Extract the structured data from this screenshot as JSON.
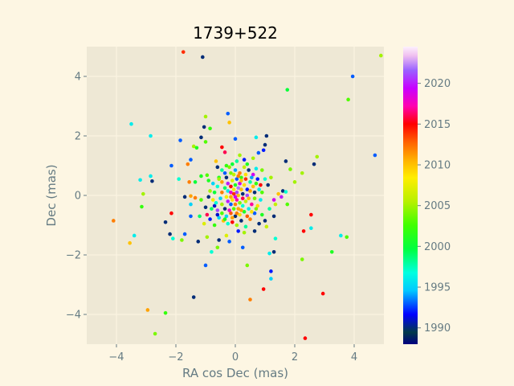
{
  "chart_data": {
    "type": "scatter",
    "title": "1739+522",
    "xlabel": "RA cos Dec (mas)",
    "ylabel": "Dec (mas)",
    "xlim": [
      -5,
      5
    ],
    "ylim": [
      -5,
      5
    ],
    "xticks": [
      -4,
      -2,
      0,
      2,
      4
    ],
    "yticks": [
      -4,
      -2,
      0,
      2,
      4
    ],
    "grid": true,
    "colorbar": {
      "label": "",
      "range": [
        1988,
        2024.5
      ],
      "ticks": [
        1990,
        1995,
        2000,
        2005,
        2010,
        2015,
        2020
      ],
      "colormap": "gist_ncar"
    },
    "colors": {
      "figure_background": "#fdf6e3",
      "axes_background": "#eee8d5",
      "grid": "#fdf6e3",
      "text": "#657b83"
    },
    "points": [
      {
        "x": -1.75,
        "y": 4.82,
        "c": 2014
      },
      {
        "x": -1.1,
        "y": 4.65,
        "c": 1990
      },
      {
        "x": 4.9,
        "y": 4.7,
        "c": 2005
      },
      {
        "x": 3.95,
        "y": 4.0,
        "c": 1993
      },
      {
        "x": 3.8,
        "y": 3.22,
        "c": 2003
      },
      {
        "x": 1.75,
        "y": 3.55,
        "c": 2000
      },
      {
        "x": -3.5,
        "y": 2.4,
        "c": 1996
      },
      {
        "x": -2.85,
        "y": 2.0,
        "c": 1996
      },
      {
        "x": -1.0,
        "y": 2.65,
        "c": 2005
      },
      {
        "x": -0.25,
        "y": 2.75,
        "c": 1993
      },
      {
        "x": -0.2,
        "y": 2.45,
        "c": 2010
      },
      {
        "x": -1.05,
        "y": 2.3,
        "c": 1990
      },
      {
        "x": -0.85,
        "y": 2.25,
        "c": 2002
      },
      {
        "x": -1.85,
        "y": 1.85,
        "c": 1993
      },
      {
        "x": -1.15,
        "y": 1.95,
        "c": 1990
      },
      {
        "x": -1.0,
        "y": 1.8,
        "c": 2003
      },
      {
        "x": -1.4,
        "y": 1.65,
        "c": 2005
      },
      {
        "x": -1.3,
        "y": 1.6,
        "c": 2001
      },
      {
        "x": -0.45,
        "y": 1.62,
        "c": 2015
      },
      {
        "x": -0.35,
        "y": 1.45,
        "c": 2016
      },
      {
        "x": 0.0,
        "y": 1.9,
        "c": 1993
      },
      {
        "x": 0.7,
        "y": 1.95,
        "c": 1996
      },
      {
        "x": 1.05,
        "y": 2.0,
        "c": 1990
      },
      {
        "x": 1.0,
        "y": 1.7,
        "c": 1990
      },
      {
        "x": 0.95,
        "y": 1.52,
        "c": 1992
      },
      {
        "x": 0.78,
        "y": 1.43,
        "c": 1993
      },
      {
        "x": 4.7,
        "y": 1.35,
        "c": 1993
      },
      {
        "x": 2.75,
        "y": 1.3,
        "c": 2005
      },
      {
        "x": 2.65,
        "y": 1.05,
        "c": 1990
      },
      {
        "x": 1.7,
        "y": 1.15,
        "c": 1990
      },
      {
        "x": 1.85,
        "y": 0.88,
        "c": 2004
      },
      {
        "x": 2.25,
        "y": 0.75,
        "c": 2005
      },
      {
        "x": 2.0,
        "y": 0.45,
        "c": 2005
      },
      {
        "x": -2.15,
        "y": 1.0,
        "c": 1993
      },
      {
        "x": -1.5,
        "y": 1.2,
        "c": 1993
      },
      {
        "x": -1.6,
        "y": 1.05,
        "c": 2012
      },
      {
        "x": -0.65,
        "y": 1.15,
        "c": 2010
      },
      {
        "x": -3.2,
        "y": 0.52,
        "c": 1996
      },
      {
        "x": -2.85,
        "y": 0.65,
        "c": 1996
      },
      {
        "x": -2.8,
        "y": 0.48,
        "c": 1990
      },
      {
        "x": -1.9,
        "y": 0.55,
        "c": 1997
      },
      {
        "x": -1.55,
        "y": 0.45,
        "c": 2012
      },
      {
        "x": -1.35,
        "y": 0.45,
        "c": 2000
      },
      {
        "x": -1.15,
        "y": 0.65,
        "c": 2001
      },
      {
        "x": -0.95,
        "y": 0.68,
        "c": 2003
      },
      {
        "x": -3.1,
        "y": 0.05,
        "c": 2005
      },
      {
        "x": -3.15,
        "y": -0.38,
        "c": 2002
      },
      {
        "x": -1.7,
        "y": -0.05,
        "c": 1990
      },
      {
        "x": -1.5,
        "y": -0.02,
        "c": 2011
      },
      {
        "x": -1.5,
        "y": -0.3,
        "c": 1995
      },
      {
        "x": -1.5,
        "y": -0.7,
        "c": 1993
      },
      {
        "x": -1.35,
        "y": -0.08,
        "c": 2012
      },
      {
        "x": -1.15,
        "y": -0.15,
        "c": 2003
      },
      {
        "x": -1.0,
        "y": -0.4,
        "c": 1990
      },
      {
        "x": -2.15,
        "y": -0.6,
        "c": 2015
      },
      {
        "x": -2.35,
        "y": -0.9,
        "c": 1990
      },
      {
        "x": -4.1,
        "y": -0.85,
        "c": 2012
      },
      {
        "x": -2.2,
        "y": -1.3,
        "c": 1990
      },
      {
        "x": -2.1,
        "y": -1.45,
        "c": 1997
      },
      {
        "x": -1.8,
        "y": -1.5,
        "c": 2004
      },
      {
        "x": -1.7,
        "y": -1.3,
        "c": 1993
      },
      {
        "x": -1.25,
        "y": -1.55,
        "c": 1990
      },
      {
        "x": -0.95,
        "y": -1.4,
        "c": 2005
      },
      {
        "x": -0.8,
        "y": -1.9,
        "c": 1997
      },
      {
        "x": -0.6,
        "y": -1.75,
        "c": 2004
      },
      {
        "x": -0.55,
        "y": -1.5,
        "c": 1990
      },
      {
        "x": -0.3,
        "y": -1.35,
        "c": 2007
      },
      {
        "x": -0.2,
        "y": -1.55,
        "c": 1993
      },
      {
        "x": 0.25,
        "y": -1.75,
        "c": 1993
      },
      {
        "x": 0.1,
        "y": -1.2,
        "c": 1992
      },
      {
        "x": 0.3,
        "y": -1.25,
        "c": 2005
      },
      {
        "x": -3.55,
        "y": -1.6,
        "c": 2010
      },
      {
        "x": -3.4,
        "y": -1.35,
        "c": 1996
      },
      {
        "x": -1.0,
        "y": -2.35,
        "c": 1993
      },
      {
        "x": 0.4,
        "y": -2.35,
        "c": 2004
      },
      {
        "x": -1.4,
        "y": -3.42,
        "c": 1990
      },
      {
        "x": -2.95,
        "y": -3.85,
        "c": 2011
      },
      {
        "x": -2.35,
        "y": -3.95,
        "c": 2002
      },
      {
        "x": -2.7,
        "y": -4.65,
        "c": 2004
      },
      {
        "x": 0.5,
        "y": -3.5,
        "c": 2012
      },
      {
        "x": 0.95,
        "y": -3.15,
        "c": 2015
      },
      {
        "x": 2.35,
        "y": -4.8,
        "c": 2015
      },
      {
        "x": 2.95,
        "y": -3.3,
        "c": 2015
      },
      {
        "x": 1.2,
        "y": -2.55,
        "c": 1992
      },
      {
        "x": 1.2,
        "y": -2.8,
        "c": 1995
      },
      {
        "x": 1.15,
        "y": -1.95,
        "c": 1996
      },
      {
        "x": 1.3,
        "y": -1.9,
        "c": 1990
      },
      {
        "x": 2.25,
        "y": -2.15,
        "c": 2004
      },
      {
        "x": 1.35,
        "y": -1.45,
        "c": 1997
      },
      {
        "x": 2.3,
        "y": -1.2,
        "c": 2015
      },
      {
        "x": 2.55,
        "y": -1.1,
        "c": 1996
      },
      {
        "x": 3.25,
        "y": -1.9,
        "c": 2001
      },
      {
        "x": 3.55,
        "y": -1.35,
        "c": 1996
      },
      {
        "x": 3.75,
        "y": -1.4,
        "c": 2003
      },
      {
        "x": 2.55,
        "y": -0.65,
        "c": 2015
      },
      {
        "x": 1.75,
        "y": -0.3,
        "c": 2003
      },
      {
        "x": 1.45,
        "y": 0.05,
        "c": 2010
      },
      {
        "x": 1.6,
        "y": 0.15,
        "c": 1990
      },
      {
        "x": 1.7,
        "y": 0.12,
        "c": 1997
      },
      {
        "x": 1.55,
        "y": -0.05,
        "c": 2020
      },
      {
        "x": 1.3,
        "y": -0.15,
        "c": 2019
      },
      {
        "x": 1.35,
        "y": -0.3,
        "c": 2006
      },
      {
        "x": 1.3,
        "y": -0.7,
        "c": 1990
      },
      {
        "x": 1.0,
        "y": -0.85,
        "c": 1990
      },
      {
        "x": 0.9,
        "y": -0.65,
        "c": 2001
      },
      {
        "x": 0.8,
        "y": -0.95,
        "c": 1990
      },
      {
        "x": 0.65,
        "y": -1.2,
        "c": 1990
      },
      {
        "x": 1.1,
        "y": 0.35,
        "c": 1990
      },
      {
        "x": 1.0,
        "y": 0.55,
        "c": 1997
      },
      {
        "x": 0.9,
        "y": 0.85,
        "c": 2004
      },
      {
        "x": 0.7,
        "y": 0.9,
        "c": 1996
      },
      {
        "x": 0.6,
        "y": 1.25,
        "c": 2005
      },
      {
        "x": 0.3,
        "y": 1.2,
        "c": 1992
      },
      {
        "x": 0.15,
        "y": 1.35,
        "c": 2005
      },
      {
        "x": 0.05,
        "y": 1.15,
        "c": 1998
      },
      {
        "x": -0.1,
        "y": 1.05,
        "c": 2000
      },
      {
        "x": -0.3,
        "y": 1.0,
        "c": 2002
      },
      {
        "x": -0.45,
        "y": 0.85,
        "c": 1998
      },
      {
        "x": -0.55,
        "y": 0.6,
        "c": 2001
      },
      {
        "x": -0.75,
        "y": 0.4,
        "c": 1995
      },
      {
        "x": -0.85,
        "y": 0.15,
        "c": 2005
      },
      {
        "x": -0.9,
        "y": -0.05,
        "c": 1990
      },
      {
        "x": -0.95,
        "y": -0.65,
        "c": 2016
      },
      {
        "x": -0.85,
        "y": -0.8,
        "c": 1992
      },
      {
        "x": -0.7,
        "y": -1.0,
        "c": 2002
      },
      {
        "x": -0.55,
        "y": -0.75,
        "c": 1995
      },
      {
        "x": -0.4,
        "y": -0.85,
        "c": 2010
      },
      {
        "x": -0.25,
        "y": -0.95,
        "c": 1997
      },
      {
        "x": -0.1,
        "y": -0.9,
        "c": 2015
      },
      {
        "x": 0.05,
        "y": -1.0,
        "c": 2005
      },
      {
        "x": 0.2,
        "y": -0.85,
        "c": 1990
      },
      {
        "x": 0.35,
        "y": -1.05,
        "c": 1998
      },
      {
        "x": 0.5,
        "y": -0.8,
        "c": 2012
      },
      {
        "x": 0.65,
        "y": -0.6,
        "c": 1993
      },
      {
        "x": 0.75,
        "y": -0.35,
        "c": 2009
      },
      {
        "x": 0.85,
        "y": -0.15,
        "c": 1996
      },
      {
        "x": 0.9,
        "y": 0.1,
        "c": 2003
      },
      {
        "x": 0.85,
        "y": 0.35,
        "c": 2015
      },
      {
        "x": 0.75,
        "y": 0.55,
        "c": 1992
      },
      {
        "x": 0.6,
        "y": 0.7,
        "c": 2019
      },
      {
        "x": 0.45,
        "y": 0.85,
        "c": 1990
      },
      {
        "x": 0.3,
        "y": 0.95,
        "c": 2006
      },
      {
        "x": 0.15,
        "y": 0.75,
        "c": 2012
      },
      {
        "x": 0.0,
        "y": 0.85,
        "c": 1994
      },
      {
        "x": -0.15,
        "y": 0.75,
        "c": 2004
      },
      {
        "x": -0.3,
        "y": 0.6,
        "c": 1990
      },
      {
        "x": -0.45,
        "y": 0.45,
        "c": 2011
      },
      {
        "x": -0.6,
        "y": 0.3,
        "c": 1997
      },
      {
        "x": -0.7,
        "y": 0.1,
        "c": 2000
      },
      {
        "x": -0.75,
        "y": -0.15,
        "c": 2008
      },
      {
        "x": -0.7,
        "y": -0.35,
        "c": 1991
      },
      {
        "x": -0.6,
        "y": -0.5,
        "c": 2021
      },
      {
        "x": -0.45,
        "y": -0.6,
        "c": 2003
      },
      {
        "x": -0.3,
        "y": -0.7,
        "c": 1995
      },
      {
        "x": -0.15,
        "y": -0.6,
        "c": 2013
      },
      {
        "x": 0.0,
        "y": -0.7,
        "c": 1990
      },
      {
        "x": 0.15,
        "y": -0.65,
        "c": 2009
      },
      {
        "x": 0.3,
        "y": -0.55,
        "c": 2001
      },
      {
        "x": 0.45,
        "y": -0.45,
        "c": 1996
      },
      {
        "x": 0.55,
        "y": -0.3,
        "c": 2017
      },
      {
        "x": 0.65,
        "y": -0.1,
        "c": 2004
      },
      {
        "x": 0.65,
        "y": 0.1,
        "c": 1990
      },
      {
        "x": 0.6,
        "y": 0.3,
        "c": 2010
      },
      {
        "x": 0.5,
        "y": 0.45,
        "c": 1998
      },
      {
        "x": 0.35,
        "y": 0.55,
        "c": 2014
      },
      {
        "x": 0.2,
        "y": 0.6,
        "c": 2002
      },
      {
        "x": 0.05,
        "y": 0.55,
        "c": 1993
      },
      {
        "x": -0.1,
        "y": 0.5,
        "c": 2007
      },
      {
        "x": -0.25,
        "y": 0.4,
        "c": 2020
      },
      {
        "x": -0.35,
        "y": 0.25,
        "c": 1999
      },
      {
        "x": -0.45,
        "y": 0.1,
        "c": 2012
      },
      {
        "x": -0.5,
        "y": -0.1,
        "c": 1995
      },
      {
        "x": -0.45,
        "y": -0.3,
        "c": 2005
      },
      {
        "x": -0.35,
        "y": -0.45,
        "c": 1990
      },
      {
        "x": -0.2,
        "y": -0.5,
        "c": 2018
      },
      {
        "x": -0.05,
        "y": -0.45,
        "c": 2003
      },
      {
        "x": 0.1,
        "y": -0.45,
        "c": 2011
      },
      {
        "x": 0.25,
        "y": -0.35,
        "c": 1997
      },
      {
        "x": 0.35,
        "y": -0.2,
        "c": 2006
      },
      {
        "x": 0.4,
        "y": 0.0,
        "c": 2021
      },
      {
        "x": 0.4,
        "y": 0.2,
        "c": 1992
      },
      {
        "x": 0.3,
        "y": 0.35,
        "c": 2009
      },
      {
        "x": 0.15,
        "y": 0.4,
        "c": 2019
      },
      {
        "x": 0.0,
        "y": 0.35,
        "c": 2001
      },
      {
        "x": -0.15,
        "y": 0.3,
        "c": 2015
      },
      {
        "x": -0.25,
        "y": 0.15,
        "c": 1996
      },
      {
        "x": -0.3,
        "y": -0.05,
        "c": 2008
      },
      {
        "x": -0.25,
        "y": -0.2,
        "c": 2020
      },
      {
        "x": -0.15,
        "y": -0.3,
        "c": 1993
      },
      {
        "x": 0.0,
        "y": -0.3,
        "c": 2012
      },
      {
        "x": 0.15,
        "y": -0.25,
        "c": 2004
      },
      {
        "x": 0.25,
        "y": -0.1,
        "c": 2016
      },
      {
        "x": 0.25,
        "y": 0.05,
        "c": 1990
      },
      {
        "x": 0.2,
        "y": 0.2,
        "c": 2010
      },
      {
        "x": 0.1,
        "y": 0.25,
        "c": 2022
      },
      {
        "x": -0.05,
        "y": 0.2,
        "c": 2008
      },
      {
        "x": -0.15,
        "y": 0.1,
        "c": 2018
      },
      {
        "x": -0.15,
        "y": -0.05,
        "c": 2011
      },
      {
        "x": -0.1,
        "y": -0.15,
        "c": 2009
      },
      {
        "x": 0.05,
        "y": -0.15,
        "c": 2017
      },
      {
        "x": 0.1,
        "y": 0.0,
        "c": 2010
      },
      {
        "x": 0.05,
        "y": 0.1,
        "c": 2021
      },
      {
        "x": -0.05,
        "y": 0.05,
        "c": 2014
      },
      {
        "x": 0.0,
        "y": -0.05,
        "c": 2019
      },
      {
        "x": 0.2,
        "y": 0.5,
        "c": 2010
      },
      {
        "x": 0.35,
        "y": 0.7,
        "c": 2009
      },
      {
        "x": 0.1,
        "y": 0.65,
        "c": 2012
      },
      {
        "x": -0.05,
        "y": 0.7,
        "c": 2006
      },
      {
        "x": 0.5,
        "y": 0.15,
        "c": 2011
      },
      {
        "x": 0.45,
        "y": -0.1,
        "c": 2010
      },
      {
        "x": 0.2,
        "y": -0.5,
        "c": 2011
      },
      {
        "x": 0.05,
        "y": -0.6,
        "c": 2012
      },
      {
        "x": -0.1,
        "y": -0.75,
        "c": 2011
      },
      {
        "x": 0.4,
        "y": -0.7,
        "c": 2013
      },
      {
        "x": 0.55,
        "y": -0.55,
        "c": 2009
      },
      {
        "x": -0.55,
        "y": 0.55,
        "c": 2005
      },
      {
        "x": -0.65,
        "y": -0.25,
        "c": 1997
      },
      {
        "x": -0.8,
        "y": -0.45,
        "c": 1999
      },
      {
        "x": -0.6,
        "y": -0.65,
        "c": 1991
      },
      {
        "x": -0.35,
        "y": -0.8,
        "c": 2001
      },
      {
        "x": 0.7,
        "y": -0.45,
        "c": 2004
      },
      {
        "x": 0.8,
        "y": 0.2,
        "c": 1996
      },
      {
        "x": 0.7,
        "y": 0.4,
        "c": 2002
      },
      {
        "x": 0.55,
        "y": 0.6,
        "c": 1994
      },
      {
        "x": -0.35,
        "y": 0.75,
        "c": 1993
      },
      {
        "x": -0.2,
        "y": 0.95,
        "c": 2004
      },
      {
        "x": 0.4,
        "y": 1.05,
        "c": 2001
      },
      {
        "x": -0.6,
        "y": 0.95,
        "c": 1990
      },
      {
        "x": -0.9,
        "y": 0.5,
        "c": 2001
      },
      {
        "x": 1.2,
        "y": 0.6,
        "c": 2005
      },
      {
        "x": 1.15,
        "y": -0.45,
        "c": 1998
      },
      {
        "x": 1.05,
        "y": -1.05,
        "c": 2006
      },
      {
        "x": -1.05,
        "y": -0.95,
        "c": 2007
      },
      {
        "x": -1.2,
        "y": -0.7,
        "c": 1999
      }
    ]
  }
}
